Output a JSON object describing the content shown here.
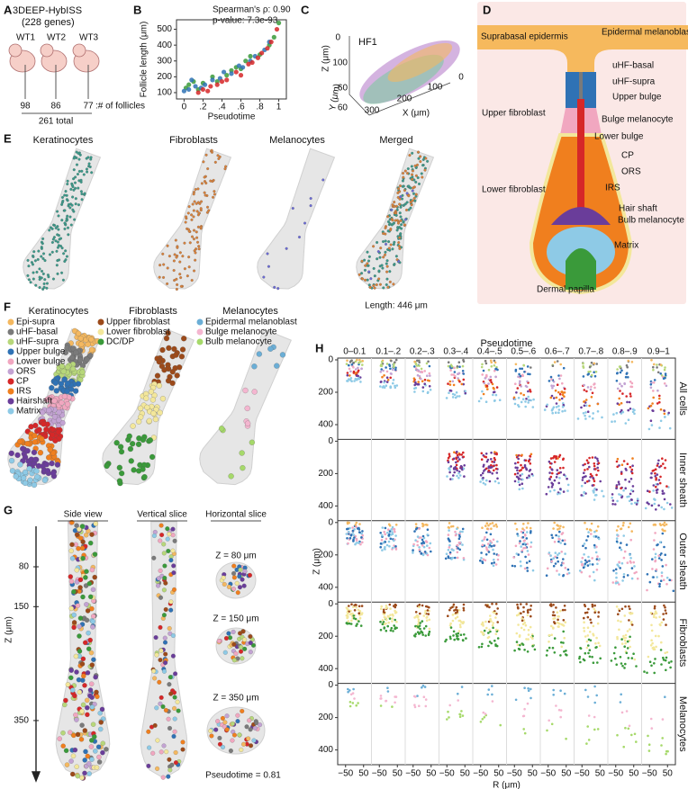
{
  "panel_labels": [
    "A",
    "B",
    "C",
    "D",
    "E",
    "F",
    "G",
    "H"
  ],
  "a": {
    "title": "3DEEP-HybISS",
    "subtitle": "(228 genes)",
    "mice": [
      "WT1",
      "WT2",
      "WT3"
    ],
    "follicles": [
      98,
      86,
      77
    ],
    "follicles_label": ":# of follicles",
    "total": "261 total"
  },
  "b": {
    "type": "scatter",
    "stats": [
      "Spearman's ρ: 0.90",
      "p-value: 7.3e-93"
    ],
    "x_label": "Pseudotime",
    "y_label": "Follicle length (μm)",
    "xlim": [
      -0.08,
      1.08
    ],
    "ylim": [
      60,
      560
    ],
    "xticks": [
      0,
      {
        "value": 0.2,
        "label": ".2"
      },
      {
        "value": 0.4,
        "label": ".4"
      },
      {
        "value": 0.6,
        "label": ".6"
      },
      {
        "value": 0.8,
        "label": ".8"
      },
      1
    ],
    "yticks": [
      100,
      200,
      300,
      400,
      500
    ],
    "series": [
      {
        "color": "#3a9a3a",
        "x": [
          0.02,
          0.05,
          0.1,
          0.15,
          0.2,
          0.3,
          0.35,
          0.45,
          0.5,
          0.55,
          0.6,
          0.65,
          0.7,
          0.8,
          0.9,
          0.95,
          1.0
        ],
        "y": [
          130,
          150,
          170,
          120,
          160,
          200,
          170,
          210,
          240,
          260,
          250,
          300,
          330,
          340,
          400,
          450,
          540
        ]
      },
      {
        "color": "#2f72b5",
        "x": [
          0.0,
          0.05,
          0.08,
          0.12,
          0.18,
          0.22,
          0.3,
          0.38,
          0.42,
          0.5,
          0.58,
          0.62,
          0.7,
          0.75,
          0.85,
          0.9
        ],
        "y": [
          110,
          120,
          180,
          140,
          130,
          150,
          180,
          190,
          230,
          220,
          270,
          260,
          300,
          330,
          370,
          420
        ]
      },
      {
        "color": "#d62728",
        "x": [
          0.15,
          0.2,
          0.25,
          0.28,
          0.35,
          0.4,
          0.45,
          0.55,
          0.6,
          0.68,
          0.72,
          0.78,
          0.82,
          0.88,
          0.92,
          0.98
        ],
        "y": [
          100,
          120,
          110,
          140,
          150,
          170,
          180,
          230,
          210,
          280,
          290,
          320,
          350,
          380,
          420,
          500
        ]
      }
    ]
  },
  "c": {
    "label": "HF1",
    "axis_labels": [
      "Z (μm)",
      "Y (μm)",
      "X (μm)"
    ],
    "z_ticks": [
      0,
      100
    ],
    "y_ticks": [
      -60,
      60
    ],
    "x_ticks": [
      300,
      200,
      100,
      0
    ]
  },
  "d": {
    "labels": [
      "Suprabasal epidermis",
      "Epidermal melanoblast",
      "uHF-basal",
      "uHF-supra",
      "Upper bulge",
      "Upper fibroblast",
      "Bulge melanocyte",
      "Lower bulge",
      "CP",
      "ORS",
      "Lower fibroblast",
      "IRS",
      "Hair shaft",
      "Bulb melanocyte",
      "Matrix",
      "Dermal papilla"
    ]
  },
  "e": {
    "titles": [
      "Keratinocytes",
      "Fibroblasts",
      "Melanocytes",
      "Merged"
    ],
    "length_label": "Length: 446 μm"
  },
  "f": {
    "groups": [
      {
        "title": "Keratinocytes",
        "types": [
          {
            "name": "Epi-supra",
            "color": "#f4b860"
          },
          {
            "name": "uHF-basal",
            "color": "#7a7a7a"
          },
          {
            "name": "uHF-supra",
            "color": "#b7d77a"
          },
          {
            "name": "Upper bulge",
            "color": "#2f72b5"
          },
          {
            "name": "Lower bulge",
            "color": "#f1a7c0"
          },
          {
            "name": "ORS",
            "color": "#c3a3d3"
          },
          {
            "name": "CP",
            "color": "#d62728"
          },
          {
            "name": "IRS",
            "color": "#f07f1e"
          },
          {
            "name": "Hairshaft",
            "color": "#6a3d9a"
          },
          {
            "name": "Matrix",
            "color": "#8ecae6"
          }
        ]
      },
      {
        "title": "Fibroblasts",
        "types": [
          {
            "name": "Upper fibroblast",
            "color": "#9c4a1a"
          },
          {
            "name": "Lower fibroblast",
            "color": "#f3e79b"
          },
          {
            "name": "DC/DP",
            "color": "#3a9a3a"
          }
        ]
      },
      {
        "title": "Melanocytes",
        "types": [
          {
            "name": "Epidermal melanoblast",
            "color": "#6baed6"
          },
          {
            "name": "Bulge melanocyte",
            "color": "#f4b6d0"
          },
          {
            "name": "Bulb melanocyte",
            "color": "#a6d96a"
          }
        ]
      }
    ]
  },
  "g": {
    "titles": [
      "Side view",
      "Vertical slice",
      "Horizontal slice"
    ],
    "z_label": "Z (μm)",
    "z_ticks": [
      80,
      150,
      350
    ],
    "slices": [
      "Z = 80 μm",
      "Z = 150 μm",
      "Z = 350 μm"
    ],
    "pseudotime_label": "Pseudotime = 0.81"
  },
  "h": {
    "x_title": "Pseudotime",
    "bins": [
      "0–0.1",
      "0.1–.2",
      "0.2–.3",
      "0.3–.4",
      "0.4–.5",
      "0.5–.6",
      "0.6–.7",
      "0.7–.8",
      "0.8–.9",
      "0.9–1"
    ],
    "rows": [
      "All cells",
      "Inner sheath",
      "Outer sheath",
      "Fibroblasts",
      "Melanocytes"
    ],
    "y_label": "Z (μm)",
    "x_label": "R (μm)",
    "yticks": [
      0,
      200,
      400
    ],
    "xticks": [
      {
        "value": -50,
        "label": "−50"
      },
      50
    ]
  }
}
